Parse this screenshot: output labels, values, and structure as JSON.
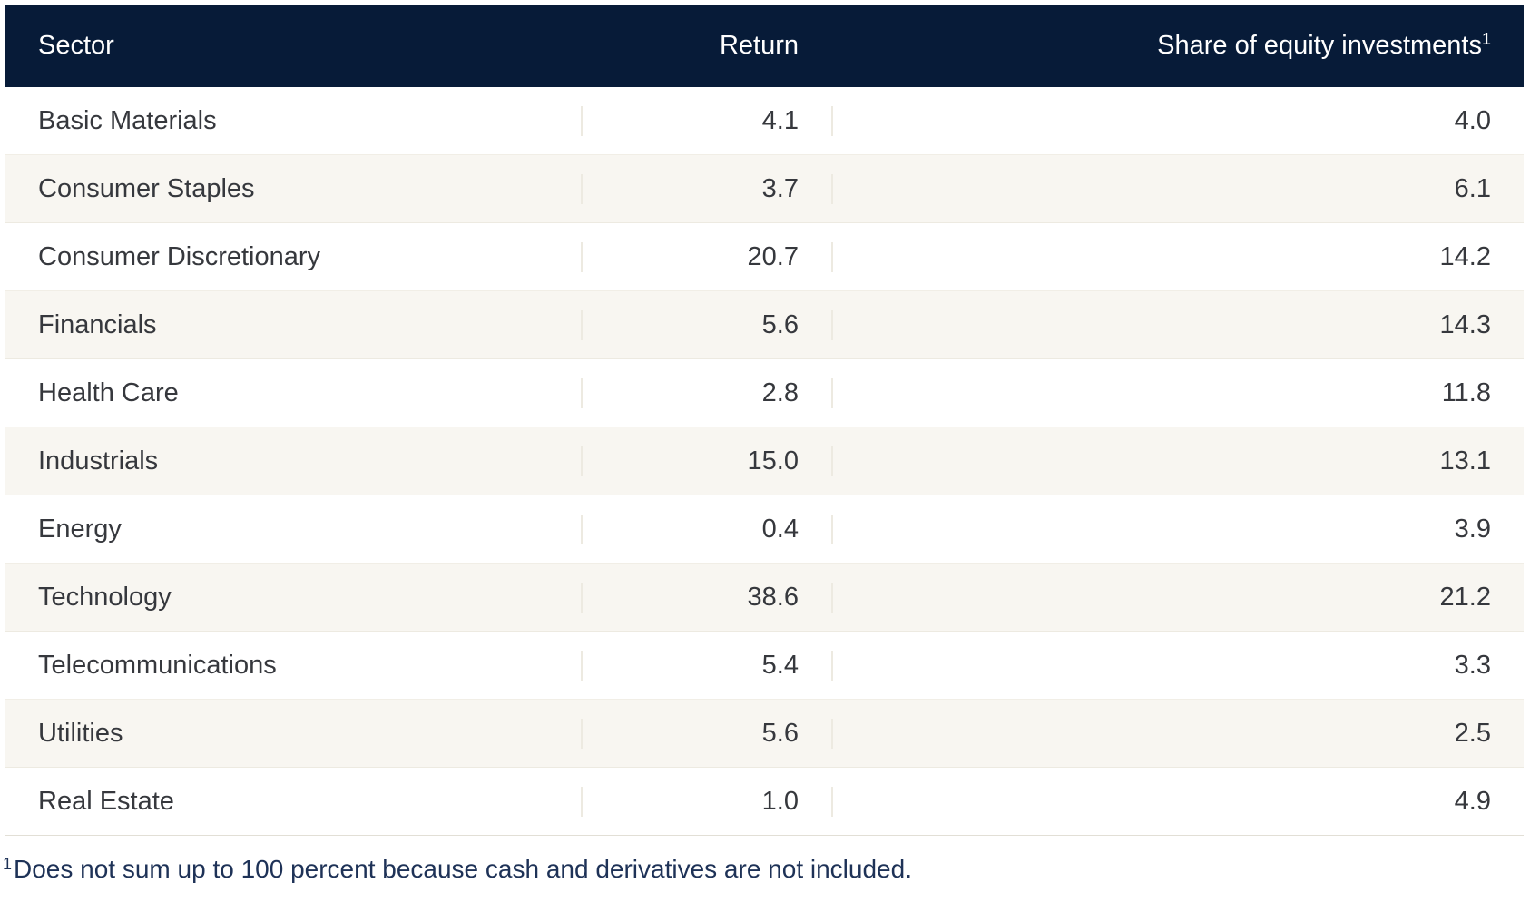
{
  "chart_data": {
    "type": "table",
    "columns": [
      "Sector",
      "Return",
      "Share of equity investments"
    ],
    "rows": [
      [
        "Basic Materials",
        4.1,
        4.0
      ],
      [
        "Consumer Staples",
        3.7,
        6.1
      ],
      [
        "Consumer Discretionary",
        20.7,
        14.2
      ],
      [
        "Financials",
        5.6,
        14.3
      ],
      [
        "Health Care",
        2.8,
        11.8
      ],
      [
        "Industrials",
        15.0,
        13.1
      ],
      [
        "Energy",
        0.4,
        3.9
      ],
      [
        "Technology",
        38.6,
        21.2
      ],
      [
        "Telecommunications",
        5.4,
        3.3
      ],
      [
        "Utilities",
        5.6,
        2.5
      ],
      [
        "Real Estate",
        1.0,
        4.9
      ]
    ],
    "footnote": "Does not sum up to 100 percent because cash and derivatives are not included.",
    "layout": {
      "header_position": "top",
      "row_striping": "alternating",
      "numeric_alignment": "right"
    }
  },
  "header": {
    "sector": "Sector",
    "return": "Return",
    "share": "Share of equity investments",
    "share_superscript": "1"
  },
  "rows": [
    {
      "sector": "Basic Materials",
      "return": "4.1",
      "share": "4.0"
    },
    {
      "sector": "Consumer Staples",
      "return": "3.7",
      "share": "6.1"
    },
    {
      "sector": "Consumer Discretionary",
      "return": "20.7",
      "share": "14.2"
    },
    {
      "sector": "Financials",
      "return": "5.6",
      "share": "14.3"
    },
    {
      "sector": "Health Care",
      "return": "2.8",
      "share": "11.8"
    },
    {
      "sector": "Industrials",
      "return": "15.0",
      "share": "13.1"
    },
    {
      "sector": "Energy",
      "return": "0.4",
      "share": "3.9"
    },
    {
      "sector": "Technology",
      "return": "38.6",
      "share": "21.2"
    },
    {
      "sector": "Telecommunications",
      "return": "5.4",
      "share": "3.3"
    },
    {
      "sector": "Utilities",
      "return": "5.6",
      "share": "2.5"
    },
    {
      "sector": "Real Estate",
      "return": "1.0",
      "share": "4.9"
    }
  ],
  "footnote": {
    "marker": "1",
    "text": "Does not sum up to 100 percent because cash and derivatives are not included."
  },
  "colors": {
    "header_bg": "#071b38",
    "header_text": "#ffffff",
    "row_bg": "#ffffff",
    "row_alt_bg": "#f8f6f1",
    "body_text": "#36383d",
    "footnote_text": "#1e3257",
    "divider": "#edeae1"
  }
}
